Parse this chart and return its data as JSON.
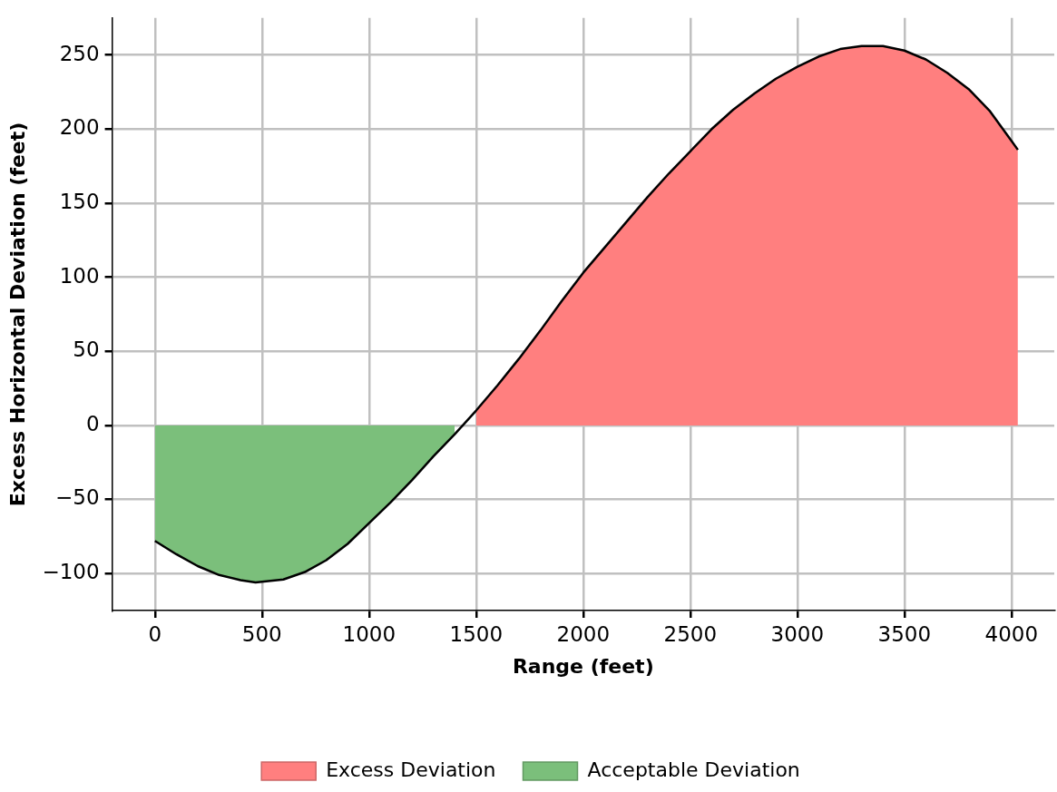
{
  "chart_data": {
    "type": "line",
    "xlabel": "Range (feet)",
    "ylabel": "Excess Horizontal Deviation (feet)",
    "xlim": [
      -200,
      4200
    ],
    "xticks": [
      0,
      500,
      1000,
      1500,
      2000,
      2500,
      3000,
      3500,
      4000
    ],
    "ylim": [
      -125,
      275
    ],
    "yticks": [
      {
        "value": -100,
        "label": "−100"
      },
      {
        "value": -50,
        "label": "−50"
      },
      0,
      50,
      100,
      150,
      200,
      250
    ],
    "grid": true,
    "legend": "bottom",
    "series": [
      {
        "name": "Excess Deviation",
        "type": "area",
        "color": "#ff7f7f",
        "x": [
          1500,
          1600,
          1700,
          1800,
          1900,
          2000,
          2100,
          2200,
          2300,
          2400,
          2500,
          2600,
          2700,
          2800,
          2900,
          3000,
          3100,
          3200,
          3300,
          3400,
          3500,
          3600,
          3700,
          3800,
          3900,
          4000,
          4030
        ],
        "values": [
          10,
          27,
          45,
          64,
          84,
          103,
          120,
          137,
          154,
          170,
          185,
          200,
          213,
          224,
          234,
          242,
          249,
          254,
          256,
          256,
          253,
          247,
          238,
          227,
          212,
          192,
          186
        ]
      },
      {
        "name": "Acceptable Deviation",
        "type": "area",
        "color": "#7bbf7b",
        "x": [
          0,
          100,
          200,
          300,
          400,
          470,
          600,
          700,
          800,
          900,
          1000,
          1100,
          1200,
          1300,
          1400
        ],
        "values": [
          -78,
          -87,
          -95,
          -101,
          -104.5,
          -106,
          -104,
          -99,
          -91,
          -80,
          -66,
          -52,
          -37,
          -21,
          -6
        ]
      },
      {
        "type": "line",
        "color": "#000000",
        "x": [
          0,
          100,
          200,
          300,
          400,
          470,
          600,
          700,
          800,
          900,
          1000,
          1100,
          1200,
          1300,
          1400,
          1450,
          1500,
          1600,
          1700,
          1800,
          1900,
          2000,
          2100,
          2200,
          2300,
          2400,
          2500,
          2600,
          2700,
          2800,
          2900,
          3000,
          3100,
          3200,
          3300,
          3400,
          3500,
          3600,
          3700,
          3800,
          3900,
          4000,
          4030
        ],
        "values": [
          -78,
          -87,
          -95,
          -101,
          -104.5,
          -106,
          -104,
          -99,
          -91,
          -80,
          -66,
          -52,
          -37,
          -21,
          -6,
          2,
          10,
          27,
          45,
          64,
          84,
          103,
          120,
          137,
          154,
          170,
          185,
          200,
          213,
          224,
          234,
          242,
          249,
          254,
          256,
          256,
          253,
          247,
          238,
          227,
          212,
          192,
          186
        ]
      }
    ]
  }
}
